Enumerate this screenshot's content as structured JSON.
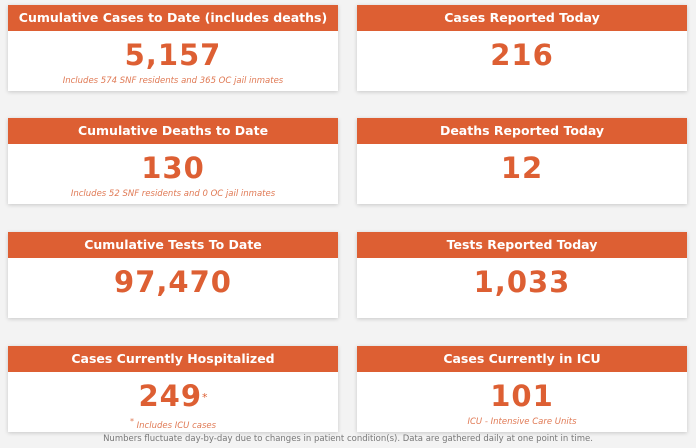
{
  "cards": [
    {
      "title": "Cumulative Cases to Date (includes deaths)",
      "value": "5,157",
      "note": "Includes 574 SNF residents and 365 OC jail inmates"
    },
    {
      "title": "Cases Reported Today",
      "value": "216",
      "note": ""
    },
    {
      "title": "Cumulative Deaths to Date",
      "value": "130",
      "note": "Includes 52 SNF residents and 0 OC jail inmates"
    },
    {
      "title": "Deaths Reported Today",
      "value": "12",
      "note": ""
    },
    {
      "title": "Cumulative Tests To Date",
      "value": "97,470",
      "note": ""
    },
    {
      "title": "Tests Reported Today",
      "value": "1,033",
      "note": ""
    },
    {
      "title": "Cases Currently Hospitalized",
      "value": "249",
      "value_marker": "*",
      "note_marker": "*",
      "note": " Includes ICU cases"
    },
    {
      "title": "Cases Currently in ICU",
      "value": "101",
      "note": "ICU - Intensive Care Units"
    }
  ],
  "footer": "Numbers fluctuate day-by-day due to changes in patient condition(s). Data are gathered daily at one point in time.",
  "colors": {
    "accent": "#dd5f33",
    "note": "#e07a55",
    "background": "#f3f3f3"
  }
}
